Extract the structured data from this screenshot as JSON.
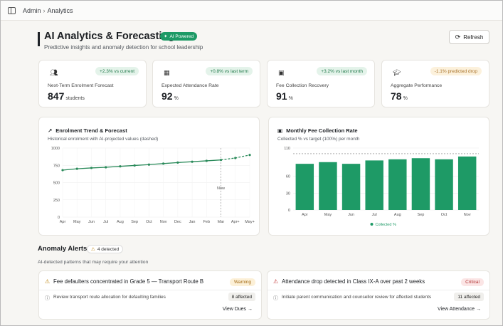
{
  "breadcrumb": {
    "parent": "Admin",
    "separator": "›",
    "current": "Analytics"
  },
  "header": {
    "title": "AI Analytics & Forecasting",
    "badge": "AI Powered",
    "subtitle": "Predictive insights and anomaly detection for school leadership",
    "refresh_label": "Refresh"
  },
  "kpis": [
    {
      "icon": "users-icon",
      "delta": "+2.3% vs current",
      "label": "Next-Term Enrolment Forecast",
      "value": "847",
      "unit": "students"
    },
    {
      "icon": "calendar-icon",
      "delta": "+0.8% vs last term",
      "label": "Expected Attendance Rate",
      "value": "92",
      "unit": "%"
    },
    {
      "icon": "money-icon",
      "delta": "+3.2% vs last month",
      "label": "Fee Collection Recovery",
      "value": "91",
      "unit": "%"
    },
    {
      "icon": "graduation-cap-icon",
      "delta": "-1.1% predicted drop",
      "label": "Aggregate Performance",
      "value": "78",
      "unit": "%"
    }
  ],
  "enrolment_panel": {
    "title": "Enrolment Trend & Forecast",
    "subtitle": "Historical enrolment with AI-projected values (dashed)",
    "marker_label": "Now"
  },
  "fee_panel": {
    "title": "Monthly Fee Collection Rate",
    "subtitle": "Collected % vs target (100%) per month",
    "legend": "Collected %"
  },
  "chart_data": [
    {
      "type": "line",
      "title": "Enrolment Trend & Forecast",
      "x": [
        "Apr",
        "May",
        "Jun",
        "Jul",
        "Aug",
        "Sep",
        "Oct",
        "Nov",
        "Dec",
        "Jan",
        "Feb",
        "Mar",
        "Apr+",
        "May+"
      ],
      "series": [
        {
          "values": [
            680,
            700,
            712,
            722,
            735,
            748,
            760,
            775,
            790,
            802,
            815,
            828,
            null,
            null
          ]
        },
        {
          "values": [
            null,
            null,
            null,
            null,
            null,
            null,
            null,
            null,
            null,
            null,
            null,
            828,
            856,
            900
          ]
        }
      ],
      "ylim": [
        0,
        1000
      ],
      "yticks": [
        0,
        250,
        500,
        750,
        1000
      ],
      "grid": true,
      "color": "#2a8a5a"
    },
    {
      "type": "bar",
      "title": "Monthly Fee Collection Rate",
      "categories": [
        "Apr",
        "May",
        "Jun",
        "Jul",
        "Aug",
        "Sep",
        "Oct",
        "Nov"
      ],
      "series": [
        {
          "name": "Collected %",
          "values": [
            82,
            85,
            82,
            88,
            90,
            92,
            90,
            95
          ]
        }
      ],
      "target": 100,
      "ylim": [
        0,
        110
      ],
      "yticks": [
        0,
        30,
        60,
        110
      ],
      "legend": "bottom-center",
      "color": "#1e9a66"
    }
  ],
  "anomalies": {
    "title": "Anomaly Alerts",
    "count": "4 detected",
    "subtitle": "AI-detected patterns that may require your attention",
    "items": [
      {
        "title": "Fee defaulters concentrated in Grade 5 — Transport Route B",
        "severity": "Warning",
        "recommendation": "Review transport route allocation for defaulting families",
        "affected": "8 affected",
        "action": "View Dues →"
      },
      {
        "title": "Attendance drop detected in Class IX-A over past 2 weeks",
        "severity": "Critical",
        "recommendation": "Initiate parent communication and counsellor review for affected students",
        "affected": "11 affected",
        "action": "View Attendance →"
      }
    ]
  }
}
